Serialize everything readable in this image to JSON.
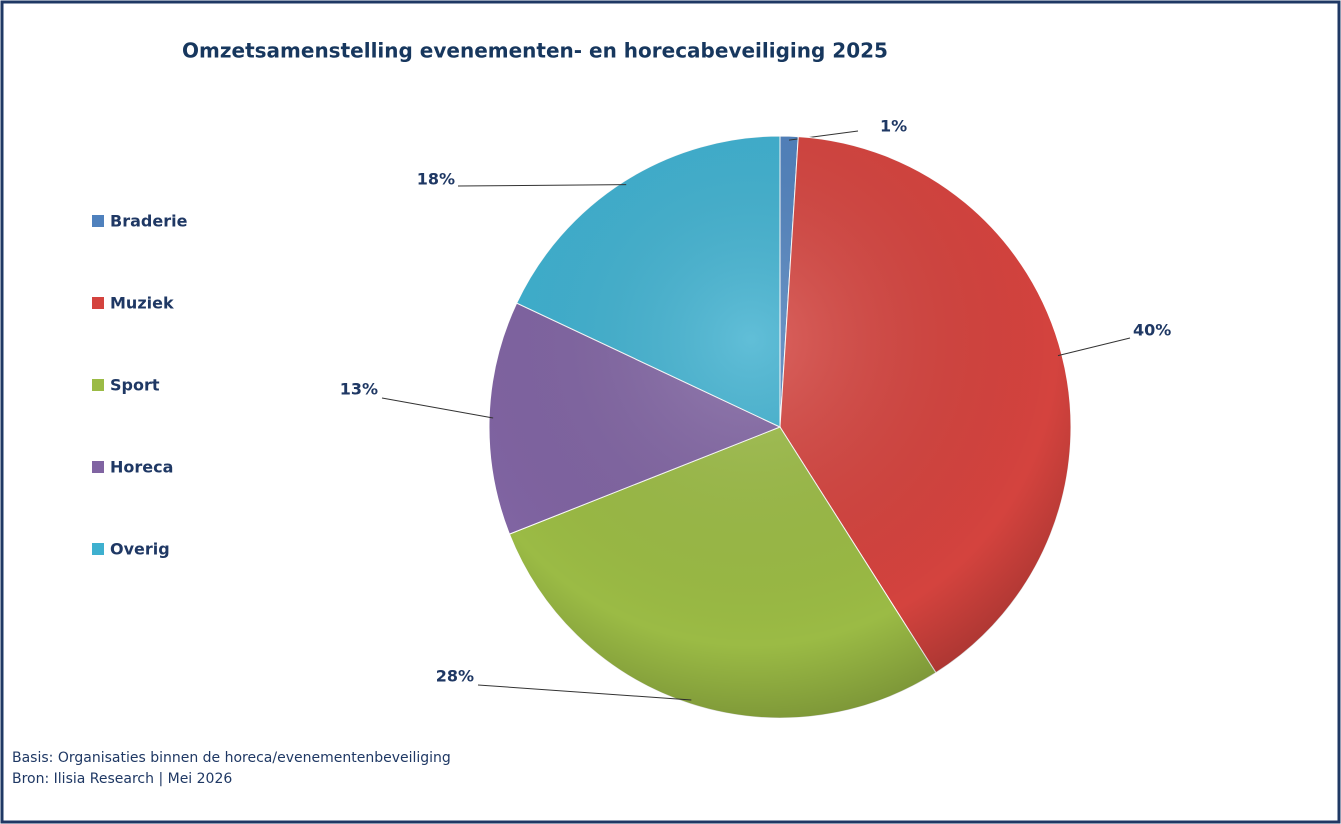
{
  "chart_data": {
    "type": "pie",
    "title": "Omzetsamenstelling evenementen- en horecabeveiliging 2025",
    "categories": [
      "Braderie",
      "Muziek",
      "Sport",
      "Horeca",
      "Overig"
    ],
    "values": [
      1,
      40,
      28,
      13,
      18
    ],
    "value_labels": [
      "1%",
      "40%",
      "28%",
      "13%",
      "18%"
    ],
    "colors": [
      "#4f81bd",
      "#d4433e",
      "#9bbb45",
      "#8064a2",
      "#3eb0cf"
    ],
    "legend": "left",
    "notes": [
      "Basis: Organisaties binnen de horeca/evenementenbeveiliging",
      "Bron: Ilisia Research | Mei 2026"
    ]
  }
}
